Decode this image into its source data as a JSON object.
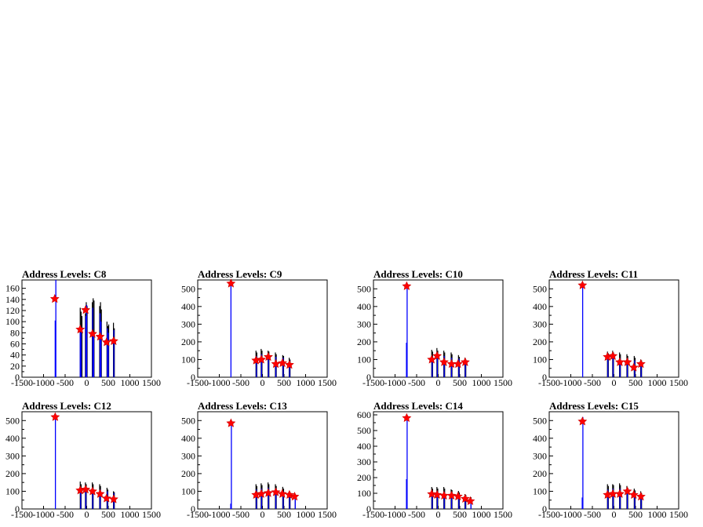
{
  "chart_data": [
    {
      "type": "histogram",
      "title": "Address Levels: C8",
      "xlim": [
        -1500,
        1500
      ],
      "ylim": [
        0,
        175
      ],
      "yticks": [
        0,
        20,
        40,
        60,
        80,
        100,
        120,
        140,
        160
      ],
      "xticks": [
        -1500,
        -1000,
        -500,
        0,
        500,
        1000,
        1500
      ],
      "xtick_labels": [
        "-1500",
        "-1000",
        "-500",
        "0",
        "500",
        "1000",
        "1500"
      ],
      "black_spikes": [
        [
          -150,
          125
        ],
        [
          -130,
          118
        ],
        [
          -110,
          110
        ],
        [
          -30,
          115
        ],
        [
          -10,
          135
        ],
        [
          10,
          128
        ],
        [
          130,
          135
        ],
        [
          150,
          142
        ],
        [
          170,
          138
        ],
        [
          300,
          128
        ],
        [
          320,
          135
        ],
        [
          340,
          122
        ],
        [
          470,
          100
        ],
        [
          490,
          92
        ],
        [
          510,
          95
        ],
        [
          620,
          98
        ],
        [
          640,
          88
        ]
      ],
      "blue_spikes": [
        [
          -730,
          102
        ],
        [
          -715,
          175
        ],
        [
          -150,
          80
        ],
        [
          -130,
          90
        ],
        [
          -20,
          110
        ],
        [
          0,
          130
        ],
        [
          140,
          125
        ],
        [
          160,
          80
        ],
        [
          310,
          115
        ],
        [
          330,
          100
        ],
        [
          480,
          88
        ],
        [
          500,
          80
        ],
        [
          630,
          85
        ]
      ],
      "peaks": [
        [
          -740,
          141
        ],
        [
          -150,
          86
        ],
        [
          -25,
          121
        ],
        [
          135,
          78
        ],
        [
          310,
          73
        ],
        [
          460,
          63
        ],
        [
          625,
          65
        ]
      ]
    },
    {
      "type": "histogram",
      "title": "Address Levels: C9",
      "xlim": [
        -1500,
        1500
      ],
      "ylim": [
        0,
        550
      ],
      "yticks": [
        0,
        100,
        200,
        300,
        400,
        500
      ],
      "xticks": [
        -1500,
        -1000,
        -500,
        0,
        500,
        1000,
        1500
      ],
      "xtick_labels": [
        "-1500",
        "-1000",
        "-500",
        "0",
        "500",
        "1000",
        "1500"
      ],
      "black_spikes": [
        [
          -150,
          150
        ],
        [
          -130,
          140
        ],
        [
          -30,
          160
        ],
        [
          -10,
          150
        ],
        [
          130,
          150
        ],
        [
          150,
          145
        ],
        [
          300,
          140
        ],
        [
          320,
          130
        ],
        [
          470,
          125
        ],
        [
          490,
          120
        ],
        [
          620,
          110
        ],
        [
          640,
          100
        ]
      ],
      "blue_spikes": [
        [
          -730,
          540
        ],
        [
          -140,
          120
        ],
        [
          -20,
          130
        ],
        [
          140,
          120
        ],
        [
          310,
          115
        ],
        [
          480,
          110
        ],
        [
          630,
          95
        ]
      ],
      "peaks": [
        [
          -730,
          530
        ],
        [
          -150,
          95
        ],
        [
          -25,
          100
        ],
        [
          135,
          115
        ],
        [
          310,
          75
        ],
        [
          465,
          80
        ],
        [
          625,
          70
        ]
      ]
    },
    {
      "type": "histogram",
      "title": "Address Levels: C10",
      "xlim": [
        -1500,
        1500
      ],
      "ylim": [
        0,
        550
      ],
      "yticks": [
        0,
        100,
        200,
        300,
        400,
        500
      ],
      "xticks": [
        -1500,
        -1000,
        -500,
        0,
        500,
        1000,
        1500
      ],
      "xtick_labels": [
        "-1500",
        "-1000",
        "-500",
        "0",
        "500",
        "1000",
        "1500"
      ],
      "black_spikes": [
        [
          -150,
          155
        ],
        [
          -130,
          145
        ],
        [
          -30,
          165
        ],
        [
          -10,
          150
        ],
        [
          130,
          150
        ],
        [
          150,
          140
        ],
        [
          300,
          140
        ],
        [
          320,
          130
        ],
        [
          470,
          125
        ],
        [
          490,
          115
        ],
        [
          620,
          110
        ],
        [
          640,
          100
        ]
      ],
      "blue_spikes": [
        [
          -735,
          195
        ],
        [
          -720,
          520
        ],
        [
          -140,
          120
        ],
        [
          -20,
          130
        ],
        [
          140,
          120
        ],
        [
          310,
          110
        ],
        [
          480,
          105
        ],
        [
          630,
          95
        ]
      ],
      "peaks": [
        [
          -730,
          515
        ],
        [
          -150,
          100
        ],
        [
          -25,
          120
        ],
        [
          135,
          85
        ],
        [
          310,
          75
        ],
        [
          460,
          75
        ],
        [
          625,
          85
        ]
      ]
    },
    {
      "type": "histogram",
      "title": "Address Levels: C11",
      "xlim": [
        -1500,
        1500
      ],
      "ylim": [
        0,
        550
      ],
      "yticks": [
        0,
        100,
        200,
        300,
        400,
        500
      ],
      "xticks": [
        -1500,
        -1000,
        -500,
        0,
        500,
        1000,
        1500
      ],
      "xtick_labels": [
        "-1500",
        "-1000",
        "-500",
        "0",
        "500",
        "1000",
        "1500"
      ],
      "black_spikes": [
        [
          -150,
          145
        ],
        [
          -130,
          135
        ],
        [
          -30,
          150
        ],
        [
          -10,
          140
        ],
        [
          130,
          140
        ],
        [
          150,
          130
        ],
        [
          300,
          130
        ],
        [
          320,
          120
        ],
        [
          470,
          120
        ],
        [
          490,
          110
        ],
        [
          620,
          100
        ],
        [
          640,
          95
        ]
      ],
      "blue_spikes": [
        [
          -725,
          535
        ],
        [
          -140,
          115
        ],
        [
          -20,
          120
        ],
        [
          140,
          110
        ],
        [
          310,
          105
        ],
        [
          480,
          95
        ],
        [
          630,
          85
        ]
      ],
      "peaks": [
        [
          -730,
          520
        ],
        [
          -150,
          115
        ],
        [
          -25,
          120
        ],
        [
          135,
          85
        ],
        [
          310,
          85
        ],
        [
          460,
          55
        ],
        [
          625,
          75
        ]
      ]
    },
    {
      "type": "histogram",
      "title": "Address Levels: C12",
      "xlim": [
        -1500,
        1500
      ],
      "ylim": [
        0,
        550
      ],
      "yticks": [
        0,
        100,
        200,
        300,
        400,
        500
      ],
      "xticks": [
        -1500,
        -1000,
        -500,
        0,
        500,
        1000,
        1500
      ],
      "xtick_labels": [
        "-1500",
        "-1000",
        "-500",
        "0",
        "500",
        "1000",
        "1500"
      ],
      "black_spikes": [
        [
          -150,
          155
        ],
        [
          -130,
          140
        ],
        [
          -30,
          150
        ],
        [
          -10,
          140
        ],
        [
          130,
          150
        ],
        [
          150,
          140
        ],
        [
          300,
          140
        ],
        [
          320,
          130
        ],
        [
          470,
          120
        ],
        [
          490,
          110
        ],
        [
          620,
          100
        ],
        [
          640,
          95
        ]
      ],
      "blue_spikes": [
        [
          -725,
          540
        ],
        [
          -140,
          120
        ],
        [
          -20,
          125
        ],
        [
          140,
          120
        ],
        [
          310,
          110
        ],
        [
          480,
          100
        ],
        [
          630,
          90
        ]
      ],
      "peaks": [
        [
          -730,
          520
        ],
        [
          -150,
          105
        ],
        [
          -25,
          110
        ],
        [
          135,
          100
        ],
        [
          310,
          85
        ],
        [
          460,
          60
        ],
        [
          625,
          55
        ]
      ]
    },
    {
      "type": "histogram",
      "title": "Address Levels: C13",
      "xlim": [
        -1500,
        1500
      ],
      "ylim": [
        0,
        550
      ],
      "yticks": [
        0,
        100,
        200,
        300,
        400,
        500
      ],
      "xticks": [
        -1500,
        -1000,
        -500,
        0,
        500,
        1000,
        1500
      ],
      "xtick_labels": [
        "-1500",
        "-1000",
        "-500",
        "0",
        "500",
        "1000",
        "1500"
      ],
      "black_spikes": [
        [
          -150,
          140
        ],
        [
          -130,
          130
        ],
        [
          -30,
          145
        ],
        [
          -10,
          135
        ],
        [
          130,
          150
        ],
        [
          150,
          140
        ],
        [
          300,
          140
        ],
        [
          320,
          130
        ],
        [
          470,
          125
        ],
        [
          490,
          115
        ],
        [
          620,
          100
        ],
        [
          640,
          95
        ],
        [
          760,
          85
        ]
      ],
      "blue_spikes": [
        [
          -735,
          30
        ],
        [
          -720,
          500
        ],
        [
          -140,
          110
        ],
        [
          -20,
          115
        ],
        [
          140,
          120
        ],
        [
          310,
          110
        ],
        [
          480,
          100
        ],
        [
          630,
          90
        ],
        [
          760,
          75
        ]
      ],
      "peaks": [
        [
          -730,
          485
        ],
        [
          -150,
          80
        ],
        [
          -25,
          85
        ],
        [
          135,
          90
        ],
        [
          310,
          95
        ],
        [
          460,
          85
        ],
        [
          625,
          80
        ],
        [
          745,
          70
        ]
      ]
    },
    {
      "type": "histogram",
      "title": "Address Levels: C14",
      "xlim": [
        -1500,
        1500
      ],
      "ylim": [
        0,
        620
      ],
      "yticks": [
        0,
        100,
        200,
        300,
        400,
        500,
        600
      ],
      "xticks": [
        -1500,
        -1000,
        -500,
        0,
        500,
        1000,
        1500
      ],
      "xtick_labels": [
        "-1500",
        "-1000",
        "-500",
        "0",
        "500",
        "1000",
        "1500"
      ],
      "black_spikes": [
        [
          -150,
          140
        ],
        [
          -130,
          130
        ],
        [
          -30,
          140
        ],
        [
          -10,
          130
        ],
        [
          130,
          140
        ],
        [
          150,
          130
        ],
        [
          300,
          125
        ],
        [
          320,
          120
        ],
        [
          470,
          115
        ],
        [
          490,
          105
        ],
        [
          620,
          95
        ],
        [
          640,
          90
        ],
        [
          760,
          75
        ]
      ],
      "blue_spikes": [
        [
          -735,
          190
        ],
        [
          -720,
          600
        ],
        [
          -140,
          110
        ],
        [
          -20,
          110
        ],
        [
          140,
          110
        ],
        [
          310,
          105
        ],
        [
          480,
          95
        ],
        [
          630,
          80
        ],
        [
          760,
          65
        ]
      ],
      "peaks": [
        [
          -730,
          580
        ],
        [
          -150,
          95
        ],
        [
          -25,
          90
        ],
        [
          135,
          85
        ],
        [
          310,
          85
        ],
        [
          460,
          80
        ],
        [
          625,
          65
        ],
        [
          745,
          50
        ]
      ]
    },
    {
      "type": "histogram",
      "title": "Address Levels: C15",
      "xlim": [
        -1500,
        1500
      ],
      "ylim": [
        0,
        550
      ],
      "yticks": [
        0,
        100,
        200,
        300,
        400,
        500
      ],
      "xticks": [
        -1500,
        -1000,
        -500,
        0,
        500,
        1000,
        1500
      ],
      "xtick_labels": [
        "-1500",
        "-1000",
        "-500",
        "0",
        "500",
        "1000",
        "1500"
      ],
      "black_spikes": [
        [
          -150,
          140
        ],
        [
          -130,
          130
        ],
        [
          -30,
          140
        ],
        [
          -10,
          135
        ],
        [
          130,
          145
        ],
        [
          150,
          135
        ],
        [
          300,
          130
        ],
        [
          320,
          120
        ],
        [
          470,
          115
        ],
        [
          490,
          105
        ],
        [
          620,
          100
        ],
        [
          640,
          90
        ]
      ],
      "blue_spikes": [
        [
          -735,
          65
        ],
        [
          -720,
          520
        ],
        [
          -140,
          110
        ],
        [
          -20,
          115
        ],
        [
          140,
          115
        ],
        [
          310,
          105
        ],
        [
          480,
          95
        ],
        [
          630,
          85
        ]
      ],
      "peaks": [
        [
          -730,
          495
        ],
        [
          -150,
          80
        ],
        [
          -25,
          85
        ],
        [
          135,
          85
        ],
        [
          310,
          100
        ],
        [
          460,
          80
        ],
        [
          625,
          70
        ]
      ]
    }
  ]
}
